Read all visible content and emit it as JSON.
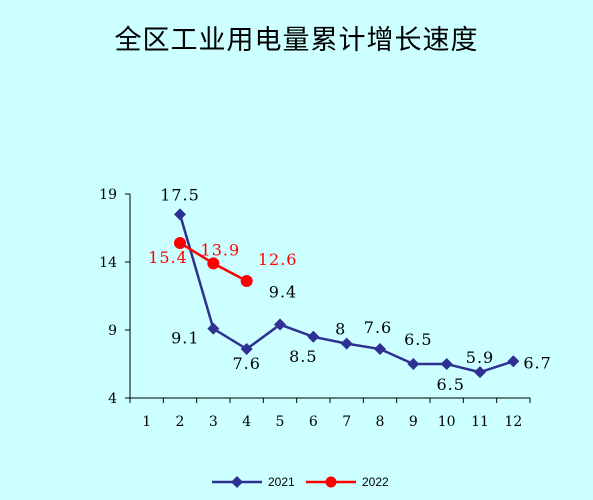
{
  "title": "全区工业用电量累计增长速度",
  "colors": {
    "s2021": "#2e3192",
    "s2022": "#ff0000",
    "background": "#ccffff"
  },
  "chart_data": {
    "type": "line",
    "title": "全区工业用电量累计增长速度",
    "x": [
      1,
      2,
      3,
      4,
      5,
      6,
      7,
      8,
      9,
      10,
      11,
      12
    ],
    "x_tick_labels": [
      "1",
      "2",
      "3",
      "4",
      "5",
      "6",
      "7",
      "8",
      "9",
      "10",
      "11",
      "12"
    ],
    "ylim": [
      4,
      19
    ],
    "y_ticks": [
      4,
      9,
      14,
      19
    ],
    "grid": false,
    "legend_position": "bottom",
    "series": [
      {
        "name": "2021",
        "marker": "diamond",
        "points": [
          {
            "x": 2,
            "y": 17.5,
            "label": "17.5"
          },
          {
            "x": 3,
            "y": 9.1,
            "label": "9.1"
          },
          {
            "x": 4,
            "y": 7.6,
            "label": "7.6"
          },
          {
            "x": 5,
            "y": 9.4,
            "label": "9.4"
          },
          {
            "x": 6,
            "y": 8.5,
            "label": "8.5"
          },
          {
            "x": 7,
            "y": 8,
            "label": "8"
          },
          {
            "x": 8,
            "y": 7.6,
            "label": "7.6"
          },
          {
            "x": 9,
            "y": 6.5,
            "label": "6.5"
          },
          {
            "x": 10,
            "y": 6.5,
            "label": "6.5"
          },
          {
            "x": 11,
            "y": 5.9,
            "label": "5.9"
          },
          {
            "x": 12,
            "y": 6.7,
            "label": "6.7"
          }
        ]
      },
      {
        "name": "2022",
        "marker": "circle",
        "points": [
          {
            "x": 2,
            "y": 15.4,
            "label": "15.4"
          },
          {
            "x": 3,
            "y": 13.9,
            "label": "13.9"
          },
          {
            "x": 4,
            "y": 12.6,
            "label": "12.6"
          }
        ]
      }
    ]
  }
}
